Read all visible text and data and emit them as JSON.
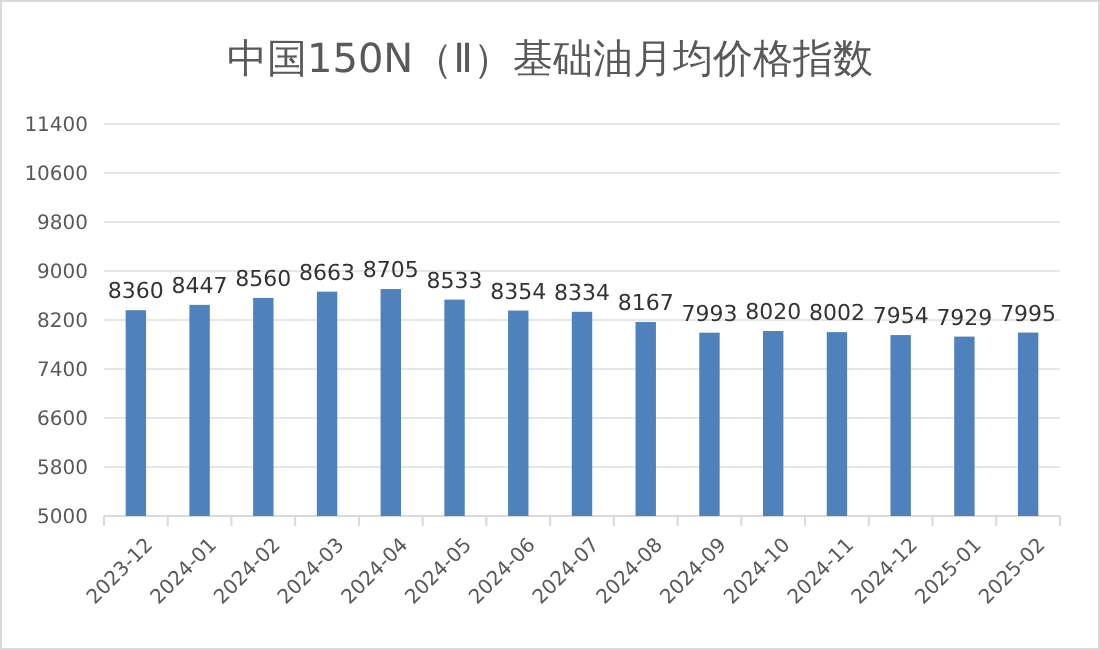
{
  "chart_data": {
    "type": "bar",
    "title": "中国150N（Ⅱ）基础油月均价格指数",
    "categories": [
      "2023-12",
      "2024-01",
      "2024-02",
      "2024-03",
      "2024-04",
      "2024-05",
      "2024-06",
      "2024-07",
      "2024-08",
      "2024-09",
      "2024-10",
      "2024-11",
      "2024-12",
      "2025-01",
      "2025-02"
    ],
    "values": [
      8360,
      8447,
      8560,
      8663,
      8705,
      8533,
      8354,
      8334,
      8167,
      7993,
      8020,
      8002,
      7954,
      7929,
      7995
    ],
    "color": "#4f81bd",
    "ylim": [
      5000,
      11400
    ],
    "yticks": [
      5000,
      5800,
      6600,
      7400,
      8200,
      9000,
      9800,
      10600,
      11400
    ],
    "grid": "y",
    "data_labels": true
  }
}
